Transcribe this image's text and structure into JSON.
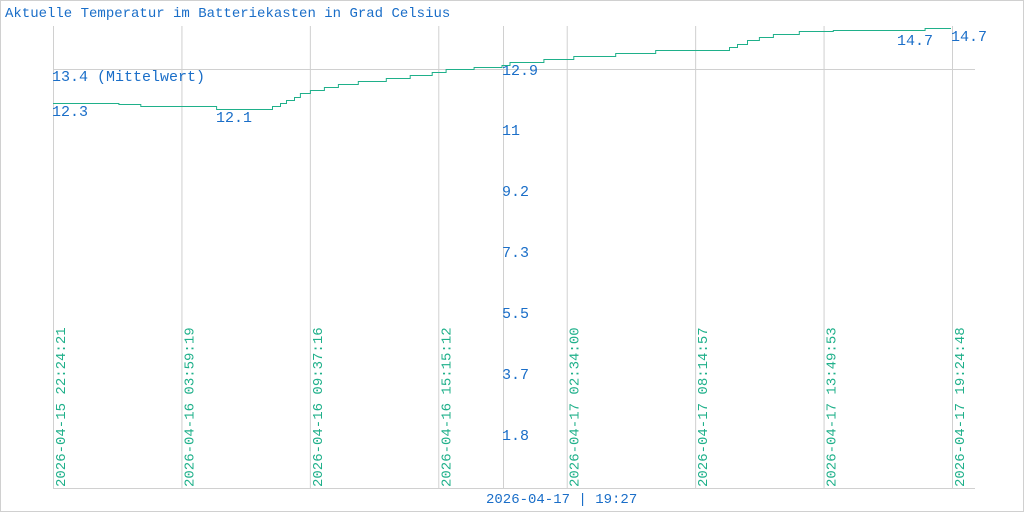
{
  "chart_data": {
    "type": "line",
    "title": "Aktuelle Temperatur im Batteriekasten in Grad Celsius",
    "xlabel": "",
    "ylabel": "",
    "footer": "2026-04-17 | 19:27",
    "x_unit": "hours since 2026-04-15 22:24:21",
    "x_range": [
      0,
      45.05
    ],
    "ylim": [
      -0.5,
      15.3
    ],
    "grid": true,
    "color": "#1fb08a",
    "label_color": "#1a6ec8",
    "x_tick_labels": [
      "2026-04-15 22:24:21",
      "2026-04-16 03:59:19",
      "2026-04-16 09:37:16",
      "2026-04-16 15:15:12",
      "2026-04-17 02:34:00",
      "2026-04-17 08:14:57",
      "2026-04-17 13:49:53",
      "2026-04-17 19:24:48"
    ],
    "y_tick_labels": [
      "12.9",
      "11",
      "9.2",
      "7.3",
      "5.5",
      "3.7",
      "1.8"
    ],
    "mean_label": "13.4 (Mittelwert)",
    "mean": 13.4,
    "annotations": {
      "first": "12.3",
      "min": "12.1",
      "last": "14.7",
      "max": "14.7"
    },
    "series": [
      {
        "name": "Temperatur",
        "x": [
          0,
          3.3,
          4.4,
          8.2,
          11.0,
          11.4,
          11.7,
          12.1,
          12.4,
          12.9,
          13.6,
          14.3,
          15.3,
          16.7,
          17.9,
          19.0,
          19.7,
          21.1,
          22.5,
          22.9,
          24.6,
          26.1,
          28.2,
          30.2,
          33.9,
          34.3,
          34.8,
          35.4,
          36.1,
          37.4,
          39.1,
          43.7,
          45.0
        ],
        "values": [
          12.3,
          12.25,
          12.2,
          12.1,
          12.2,
          12.3,
          12.4,
          12.5,
          12.6,
          12.7,
          12.8,
          12.9,
          13.0,
          13.1,
          13.2,
          13.3,
          13.4,
          13.45,
          13.5,
          13.6,
          13.7,
          13.8,
          13.9,
          14.0,
          14.1,
          14.2,
          14.3,
          14.4,
          14.5,
          14.6,
          14.65,
          14.7,
          14.7
        ]
      }
    ]
  }
}
